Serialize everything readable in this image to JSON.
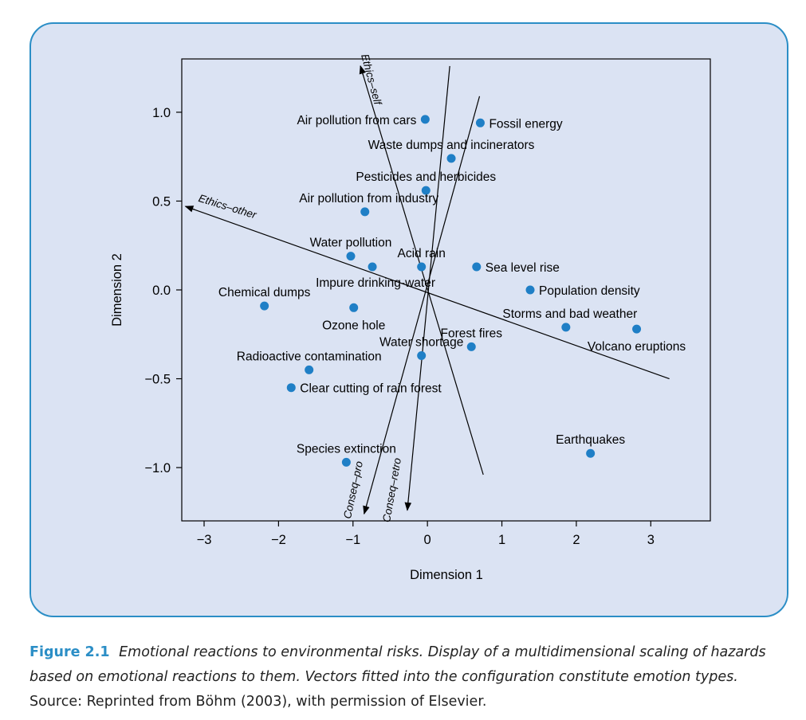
{
  "chart_data": {
    "type": "scatter",
    "xlabel": "Dimension 1",
    "ylabel": "Dimension 2",
    "xlim": [
      -3.3,
      3.8
    ],
    "ylim": [
      -1.3,
      1.3
    ],
    "xticks": [
      -3,
      -2,
      -1,
      0,
      1,
      2,
      3
    ],
    "yticks": [
      -1.0,
      -0.5,
      0.0,
      0.5,
      1.0
    ],
    "xtick_labels": [
      "−3",
      "−2",
      "−1",
      "0",
      "1",
      "2",
      "3"
    ],
    "ytick_labels": [
      "−1.0",
      "−0.5",
      "0.0",
      "0.5",
      "1.0"
    ],
    "grid": false,
    "marker_color": "#1f7fc6",
    "points": [
      {
        "label": "Air pollution from cars",
        "x": -0.03,
        "y": 0.96,
        "label_side": "left"
      },
      {
        "label": "Fossil energy",
        "x": 0.71,
        "y": 0.94,
        "label_side": "right"
      },
      {
        "label": "Waste dumps and incinerators",
        "x": 0.32,
        "y": 0.74,
        "label_side": "above"
      },
      {
        "label": "Pesticides and herbicides",
        "x": -0.02,
        "y": 0.56,
        "label_side": "above"
      },
      {
        "label": "Air pollution from industry",
        "x": -0.84,
        "y": 0.44,
        "label_side": "above-right"
      },
      {
        "label": "Water pollution",
        "x": -1.03,
        "y": 0.19,
        "label_side": "above"
      },
      {
        "label": "Acid rain",
        "x": -0.08,
        "y": 0.13,
        "label_side": "above"
      },
      {
        "label": "Impure drinking-water",
        "x": -0.74,
        "y": 0.13,
        "label_side": "below-right"
      },
      {
        "label": "Sea level rise",
        "x": 0.66,
        "y": 0.13,
        "label_side": "right"
      },
      {
        "label": "Population density",
        "x": 1.38,
        "y": 0.0,
        "label_side": "right"
      },
      {
        "label": "Chemical dumps",
        "x": -2.19,
        "y": -0.09,
        "label_side": "above"
      },
      {
        "label": "Ozone hole",
        "x": -0.99,
        "y": -0.1,
        "label_side": "below"
      },
      {
        "label": "Storms and bad weather",
        "x": 1.86,
        "y": -0.21,
        "label_side": "above-right"
      },
      {
        "label": "Volcano eruptions",
        "x": 2.81,
        "y": -0.22,
        "label_side": "below"
      },
      {
        "label": "Forest fires",
        "x": 0.59,
        "y": -0.32,
        "label_side": "above"
      },
      {
        "label": "Water shortage",
        "x": -0.08,
        "y": -0.37,
        "label_side": "above"
      },
      {
        "label": "Radioactive contamination",
        "x": -1.59,
        "y": -0.45,
        "label_side": "above"
      },
      {
        "label": "Clear cutting of rain forest",
        "x": -1.83,
        "y": -0.55,
        "label_side": "right"
      },
      {
        "label": "Species extinction",
        "x": -1.09,
        "y": -0.97,
        "label_side": "above"
      },
      {
        "label": "Earthquakes",
        "x": 2.19,
        "y": -0.92,
        "label_side": "above"
      }
    ],
    "lines": [
      {
        "from": [
          3.25,
          -0.5
        ],
        "to": [
          -3.25,
          0.47
        ]
      },
      {
        "from": [
          0.3,
          1.26
        ],
        "to": [
          -0.27,
          -1.24
        ]
      },
      {
        "from": [
          0.7,
          1.09
        ],
        "to": [
          -0.85,
          -1.26
        ]
      },
      {
        "from": [
          0.75,
          -1.04
        ],
        "to": [
          -0.9,
          1.26
        ]
      }
    ],
    "vectors": [
      {
        "name": "Ethics–self",
        "from": [
          0.0,
          0.0
        ],
        "to": [
          -0.9,
          1.26
        ],
        "label_at": [
          -0.8,
          1.18
        ],
        "rotate": 75
      },
      {
        "name": "Ethics–other",
        "from": [
          0.0,
          0.0
        ],
        "to": [
          -3.25,
          0.47
        ],
        "label_at": [
          -2.7,
          0.45
        ],
        "rotate": 17
      },
      {
        "name": "Conseq–pro",
        "from": [
          0.0,
          0.0
        ],
        "to": [
          -0.85,
          -1.26
        ],
        "label_at": [
          -0.95,
          -1.13
        ],
        "rotate": -78
      },
      {
        "name": "Conseq–retro",
        "from": [
          0.0,
          0.0
        ],
        "to": [
          -0.27,
          -1.24
        ],
        "label_at": [
          -0.43,
          -1.13
        ],
        "rotate": -80
      }
    ]
  },
  "caption": {
    "figure_number": "Figure 2.1",
    "text": "Emotional reactions to environmental risks. Display of a multidimensional scaling of hazards based on emotional reactions to them. Vectors fitted into the configuration constitute emotion types.",
    "source": "Source: Reprinted from Böhm (2003), with permission of Elsevier."
  }
}
